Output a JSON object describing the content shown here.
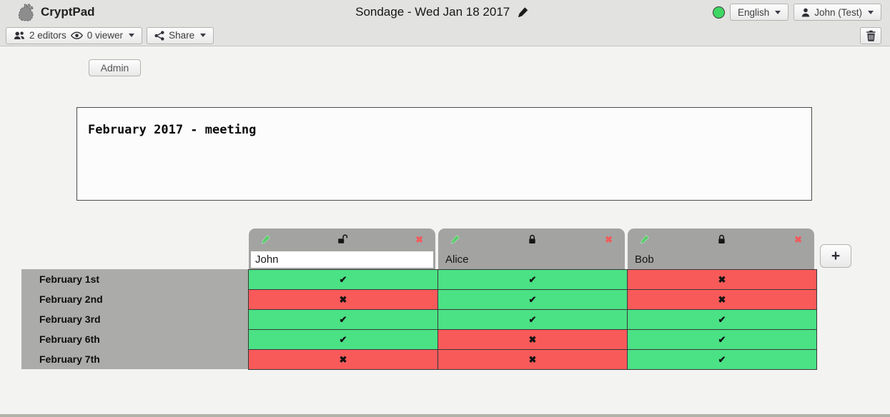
{
  "topbar": {
    "app_name": "CryptPad",
    "doc_title": "Sondage - Wed Jan 18 2017",
    "language": "English",
    "user": "John (Test)"
  },
  "toolbar": {
    "editors_label": "2 editors",
    "viewers_label": "0 viewer",
    "share_label": "Share"
  },
  "admin_button_label": "Admin",
  "description_text": "February 2017 - meeting",
  "poll": {
    "columns": [
      {
        "name": "John",
        "editable": true,
        "locked": false
      },
      {
        "name": "Alice",
        "editable": false,
        "locked": true
      },
      {
        "name": "Bob",
        "editable": false,
        "locked": true
      }
    ],
    "rows": [
      "February 1st",
      "February 2nd",
      "February 3rd",
      "February 6th",
      "February 7th"
    ],
    "votes": [
      [
        "yes",
        "yes",
        "no"
      ],
      [
        "no",
        "yes",
        "no"
      ],
      [
        "yes",
        "yes",
        "yes"
      ],
      [
        "yes",
        "no",
        "yes"
      ],
      [
        "no",
        "no",
        "yes"
      ]
    ],
    "marks": {
      "yes": "✔",
      "no": "✖"
    },
    "add_column_label": "+",
    "colors": {
      "yes": "#4BE185",
      "no": "#F85A5A",
      "presence": "#3FD763"
    }
  }
}
